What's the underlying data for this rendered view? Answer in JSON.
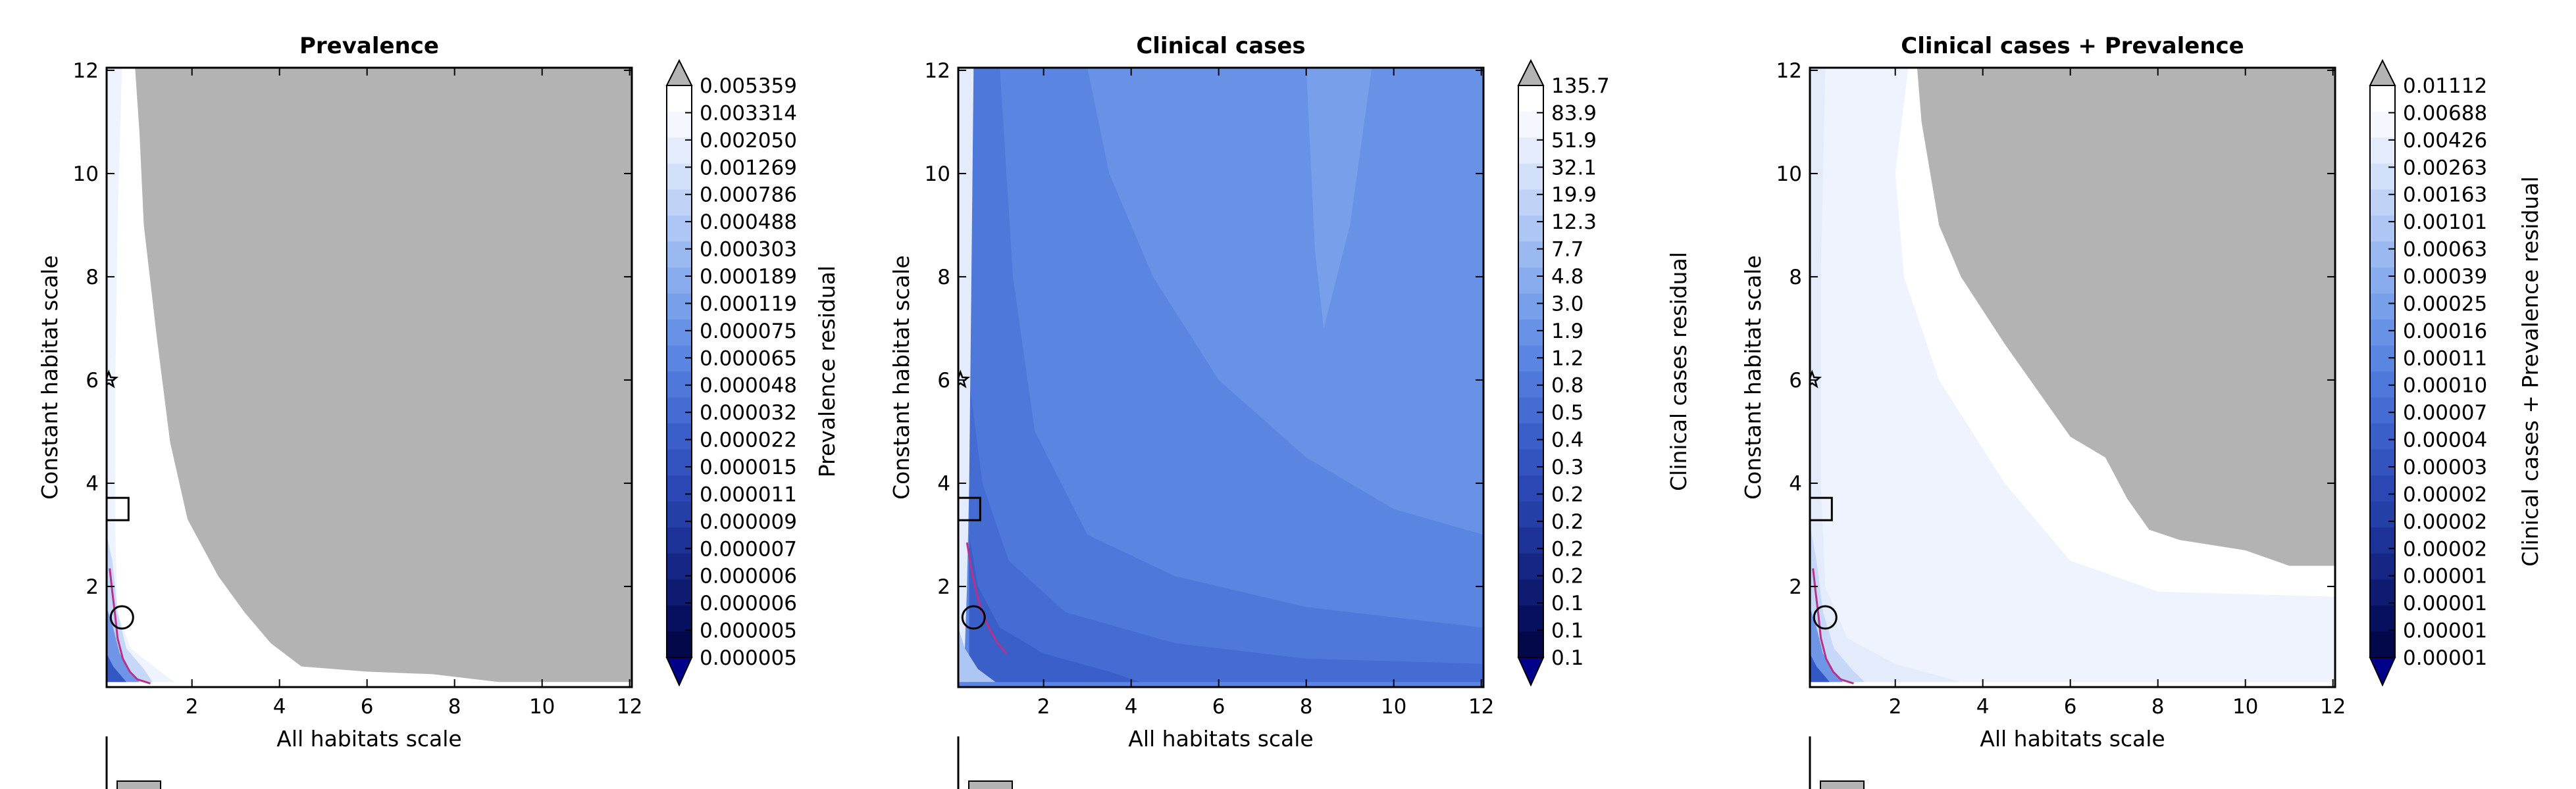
{
  "figure": {
    "background": "#ffffff",
    "masked_color": "#b3b3b3"
  },
  "chart_data": [
    {
      "type": "heatmap",
      "title": "Prevalence",
      "xlabel": "All habitats scale",
      "ylabel": "Constant habitat scale",
      "xlim": [
        0.05,
        12.05
      ],
      "ylim": [
        0.05,
        12.05
      ],
      "xticks": [
        2,
        4,
        6,
        8,
        10,
        12
      ],
      "yticks": [
        2,
        4,
        6,
        8,
        10,
        12
      ],
      "colorbar_label": "Prevalence residual",
      "colorbar_ticks": [
        "0.005359",
        "0.003314",
        "0.002050",
        "0.001269",
        "0.000786",
        "0.000488",
        "0.000303",
        "0.000189",
        "0.000119",
        "0.000075",
        "0.000065",
        "0.000048",
        "0.000032",
        "0.000022",
        "0.000015",
        "0.000011",
        "0.000009",
        "0.000007",
        "0.000006",
        "0.000006",
        "0.000005",
        "0.000005"
      ],
      "colorbar_colors": [
        "#ffffff",
        "#f4f7fd",
        "#e4ecfb",
        "#d2e0f9",
        "#c0d3f7",
        "#adc6f4",
        "#9bb9f1",
        "#89acee",
        "#779fea",
        "#6792e6",
        "#5a86e1",
        "#4e79da",
        "#446cd2",
        "#3b5fc9",
        "#3353be",
        "#2b47b3",
        "#2440a6",
        "#1c3296",
        "#152684",
        "#0e1b71",
        "#07105e",
        "#03084a"
      ],
      "colorbar_extend_colors": {
        "max": "#b3b3b3",
        "min": "#00008b"
      },
      "markers": [
        {
          "shape": "square",
          "x": 0.25,
          "y": 3.5
        },
        {
          "shape": "circle",
          "x": 0.4,
          "y": 1.4
        },
        {
          "shape": "star",
          "x": 0.1,
          "y": 6.0
        }
      ],
      "masked_region": [
        [
          0.7,
          12.05
        ],
        [
          12.05,
          12.05
        ],
        [
          12.05,
          0.15
        ],
        [
          9.0,
          0.15
        ],
        [
          7.5,
          0.3
        ],
        [
          6.0,
          0.35
        ],
        [
          4.5,
          0.45
        ],
        [
          3.8,
          0.9
        ],
        [
          3.2,
          1.5
        ],
        [
          2.6,
          2.2
        ],
        [
          1.9,
          3.3
        ],
        [
          1.5,
          4.8
        ],
        [
          1.2,
          6.8
        ],
        [
          0.9,
          9.0
        ],
        [
          0.8,
          10.8
        ]
      ],
      "shaded_bands": [
        {
          "color": "#eef3fd",
          "points": [
            [
              0.05,
              12.05
            ],
            [
              0.4,
              12.05
            ],
            [
              0.3,
              9.0
            ],
            [
              0.25,
              6.0
            ],
            [
              0.25,
              3.0
            ],
            [
              0.3,
              1.5
            ],
            [
              0.6,
              0.8
            ],
            [
              1.2,
              0.4
            ],
            [
              1.6,
              0.15
            ],
            [
              0.05,
              0.15
            ]
          ]
        },
        {
          "color": "#c6d7f7",
          "points": [
            [
              0.05,
              3.0
            ],
            [
              0.18,
              2.5
            ],
            [
              0.3,
              1.5
            ],
            [
              0.5,
              0.8
            ],
            [
              0.9,
              0.4
            ],
            [
              1.1,
              0.15
            ],
            [
              0.05,
              0.15
            ]
          ]
        },
        {
          "color": "#6f95e6",
          "points": [
            [
              0.05,
              1.6
            ],
            [
              0.2,
              1.2
            ],
            [
              0.35,
              0.7
            ],
            [
              0.6,
              0.35
            ],
            [
              0.8,
              0.15
            ],
            [
              0.05,
              0.15
            ]
          ]
        },
        {
          "color": "#3357c4",
          "points": [
            [
              0.05,
              0.7
            ],
            [
              0.2,
              0.45
            ],
            [
              0.4,
              0.25
            ],
            [
              0.5,
              0.15
            ],
            [
              0.05,
              0.15
            ]
          ]
        }
      ],
      "contour_line": [
        [
          0.12,
          2.35
        ],
        [
          0.18,
          1.9
        ],
        [
          0.25,
          1.4
        ],
        [
          0.3,
          1.0
        ],
        [
          0.42,
          0.6
        ],
        [
          0.58,
          0.35
        ],
        [
          0.75,
          0.2
        ],
        [
          1.05,
          0.12
        ]
      ]
    },
    {
      "type": "heatmap",
      "title": "Clinical cases",
      "xlabel": "All habitats scale",
      "ylabel": "Constant habitat scale",
      "xlim": [
        0.05,
        12.05
      ],
      "ylim": [
        0.05,
        12.05
      ],
      "xticks": [
        2,
        4,
        6,
        8,
        10,
        12
      ],
      "yticks": [
        2,
        4,
        6,
        8,
        10,
        12
      ],
      "colorbar_label": "Clinical cases residual",
      "colorbar_ticks": [
        "135.7",
        "83.9",
        "51.9",
        "32.1",
        "19.9",
        "12.3",
        "7.7",
        "4.8",
        "3.0",
        "1.9",
        "1.2",
        "0.8",
        "0.5",
        "0.4",
        "0.3",
        "0.2",
        "0.2",
        "0.2",
        "0.2",
        "0.1",
        "0.1",
        "0.1"
      ],
      "colorbar_colors": [
        "#ffffff",
        "#f4f7fd",
        "#e4ecfb",
        "#d2e0f9",
        "#c0d3f7",
        "#adc6f4",
        "#9bb9f1",
        "#89acee",
        "#779fea",
        "#6792e6",
        "#5a86e1",
        "#4e79da",
        "#446cd2",
        "#3b5fc9",
        "#3353be",
        "#2b47b3",
        "#2440a6",
        "#1c3296",
        "#152684",
        "#0e1b71",
        "#07105e",
        "#03084a"
      ],
      "colorbar_extend_colors": {
        "max": "#b3b3b3",
        "min": "#00008b"
      },
      "markers": [
        {
          "shape": "square",
          "x": 0.25,
          "y": 3.5
        },
        {
          "shape": "circle",
          "x": 0.4,
          "y": 1.4
        },
        {
          "shape": "star",
          "x": 0.1,
          "y": 6.0
        }
      ],
      "background_fill": "#5a86e1",
      "shaded_bands": [
        {
          "color": "#6792e6",
          "points": [
            [
              3.0,
              12.05
            ],
            [
              12.05,
              12.05
            ],
            [
              12.05,
              3.0
            ],
            [
              10.0,
              3.5
            ],
            [
              8.0,
              4.5
            ],
            [
              6.0,
              6.0
            ],
            [
              4.5,
              8.0
            ],
            [
              3.5,
              10.0
            ]
          ]
        },
        {
          "color": "#779fea",
          "points": [
            [
              8.0,
              12.05
            ],
            [
              9.5,
              12.05
            ],
            [
              9.0,
              9.0
            ],
            [
              8.4,
              7.0
            ],
            [
              8.2,
              8.5
            ]
          ]
        },
        {
          "color": "#4e79da",
          "points": [
            [
              0.3,
              12.05
            ],
            [
              1.0,
              12.05
            ],
            [
              1.3,
              8.0
            ],
            [
              1.8,
              5.0
            ],
            [
              3.0,
              3.0
            ],
            [
              5.0,
              2.2
            ],
            [
              8.0,
              1.6
            ],
            [
              12.05,
              1.2
            ],
            [
              12.05,
              0.15
            ],
            [
              0.3,
              0.15
            ]
          ]
        },
        {
          "color": "#446cd2",
          "points": [
            [
              0.3,
              6.0
            ],
            [
              0.6,
              4.0
            ],
            [
              1.2,
              2.5
            ],
            [
              2.5,
              1.5
            ],
            [
              5.0,
              0.9
            ],
            [
              8.0,
              0.6
            ],
            [
              12.05,
              0.5
            ],
            [
              12.05,
              0.15
            ],
            [
              0.3,
              0.15
            ]
          ]
        },
        {
          "color": "#3b5fc9",
          "points": [
            [
              0.3,
              3.0
            ],
            [
              0.5,
              2.0
            ],
            [
              1.0,
              1.2
            ],
            [
              2.0,
              0.7
            ],
            [
              3.5,
              0.35
            ],
            [
              4.2,
              0.15
            ],
            [
              0.3,
              0.15
            ]
          ]
        },
        {
          "color": "#e4ecfb",
          "points": [
            [
              0.05,
              12.05
            ],
            [
              0.4,
              12.05
            ],
            [
              0.35,
              8.0
            ],
            [
              0.3,
              4.0
            ],
            [
              0.25,
              2.0
            ],
            [
              0.2,
              0.8
            ],
            [
              0.05,
              0.15
            ]
          ]
        },
        {
          "color": "#adc6f4",
          "points": [
            [
              0.05,
              1.2
            ],
            [
              0.2,
              0.8
            ],
            [
              0.5,
              0.4
            ],
            [
              0.9,
              0.15
            ],
            [
              0.05,
              0.15
            ]
          ]
        }
      ],
      "contour_line": [
        [
          0.25,
          2.85
        ],
        [
          0.38,
          2.2
        ],
        [
          0.55,
          1.6
        ],
        [
          0.75,
          1.2
        ],
        [
          0.95,
          0.9
        ],
        [
          1.15,
          0.7
        ]
      ]
    },
    {
      "type": "heatmap",
      "title": "Clinical cases + Prevalence",
      "xlabel": "All habitats scale",
      "ylabel": "Constant habitat scale",
      "xlim": [
        0.05,
        12.05
      ],
      "ylim": [
        0.05,
        12.05
      ],
      "xticks": [
        2,
        4,
        6,
        8,
        10,
        12
      ],
      "yticks": [
        2,
        4,
        6,
        8,
        10,
        12
      ],
      "colorbar_label": "Clinical cases + Prevalence residual",
      "colorbar_ticks": [
        "0.01112",
        "0.00688",
        "0.00426",
        "0.00263",
        "0.00163",
        "0.00101",
        "0.00063",
        "0.00039",
        "0.00025",
        "0.00016",
        "0.00011",
        "0.00010",
        "0.00007",
        "0.00004",
        "0.00003",
        "0.00002",
        "0.00002",
        "0.00002",
        "0.00001",
        "0.00001",
        "0.00001",
        "0.00001"
      ],
      "colorbar_colors": [
        "#ffffff",
        "#f4f7fd",
        "#e4ecfb",
        "#d2e0f9",
        "#c0d3f7",
        "#adc6f4",
        "#9bb9f1",
        "#89acee",
        "#779fea",
        "#6792e6",
        "#5a86e1",
        "#4e79da",
        "#446cd2",
        "#3b5fc9",
        "#3353be",
        "#2b47b3",
        "#2440a6",
        "#1c3296",
        "#152684",
        "#0e1b71",
        "#07105e",
        "#03084a"
      ],
      "colorbar_extend_colors": {
        "max": "#b3b3b3",
        "min": "#00008b"
      },
      "markers": [
        {
          "shape": "square",
          "x": 0.25,
          "y": 3.5
        },
        {
          "shape": "circle",
          "x": 0.4,
          "y": 1.4
        },
        {
          "shape": "star",
          "x": 0.1,
          "y": 6.0
        }
      ],
      "masked_region": [
        [
          2.5,
          12.05
        ],
        [
          12.05,
          12.05
        ],
        [
          12.05,
          2.4
        ],
        [
          11.0,
          2.4
        ],
        [
          10.0,
          2.7
        ],
        [
          8.5,
          2.9
        ],
        [
          7.8,
          3.1
        ],
        [
          7.3,
          3.7
        ],
        [
          6.8,
          4.5
        ],
        [
          6.0,
          4.9
        ],
        [
          5.5,
          5.5
        ],
        [
          4.5,
          6.7
        ],
        [
          3.5,
          8.0
        ],
        [
          3.0,
          9.0
        ],
        [
          2.8,
          10.0
        ],
        [
          2.6,
          11.0
        ]
      ],
      "shaded_bands": [
        {
          "color": "#eef3fd",
          "points": [
            [
              0.05,
              12.05
            ],
            [
              2.3,
              12.05
            ],
            [
              2.0,
              10.0
            ],
            [
              2.2,
              8.0
            ],
            [
              3.0,
              6.0
            ],
            [
              4.5,
              4.0
            ],
            [
              6.0,
              2.5
            ],
            [
              8.0,
              1.9
            ],
            [
              12.05,
              1.8
            ],
            [
              12.05,
              0.15
            ],
            [
              0.05,
              0.15
            ]
          ]
        },
        {
          "color": "#e4ecfb",
          "points": [
            [
              0.05,
              12.05
            ],
            [
              0.4,
              12.05
            ],
            [
              0.3,
              8.0
            ],
            [
              0.3,
              4.0
            ],
            [
              0.4,
              2.0
            ],
            [
              0.9,
              1.0
            ],
            [
              2.0,
              0.5
            ],
            [
              3.5,
              0.15
            ],
            [
              0.05,
              0.15
            ]
          ]
        },
        {
          "color": "#c6d7f7",
          "points": [
            [
              0.05,
              3.2
            ],
            [
              0.2,
              2.5
            ],
            [
              0.35,
              1.5
            ],
            [
              0.6,
              0.8
            ],
            [
              1.0,
              0.4
            ],
            [
              1.3,
              0.15
            ],
            [
              0.05,
              0.15
            ]
          ]
        },
        {
          "color": "#6f95e6",
          "points": [
            [
              0.05,
              1.6
            ],
            [
              0.2,
              1.2
            ],
            [
              0.35,
              0.7
            ],
            [
              0.6,
              0.35
            ],
            [
              0.8,
              0.15
            ],
            [
              0.05,
              0.15
            ]
          ]
        },
        {
          "color": "#3357c4",
          "points": [
            [
              0.05,
              0.7
            ],
            [
              0.2,
              0.45
            ],
            [
              0.4,
              0.25
            ],
            [
              0.5,
              0.15
            ],
            [
              0.05,
              0.15
            ]
          ]
        }
      ],
      "contour_line": [
        [
          0.12,
          2.35
        ],
        [
          0.18,
          1.9
        ],
        [
          0.25,
          1.4
        ],
        [
          0.3,
          1.0
        ],
        [
          0.42,
          0.6
        ],
        [
          0.58,
          0.35
        ],
        [
          0.75,
          0.2
        ],
        [
          1.05,
          0.12
        ]
      ]
    }
  ]
}
